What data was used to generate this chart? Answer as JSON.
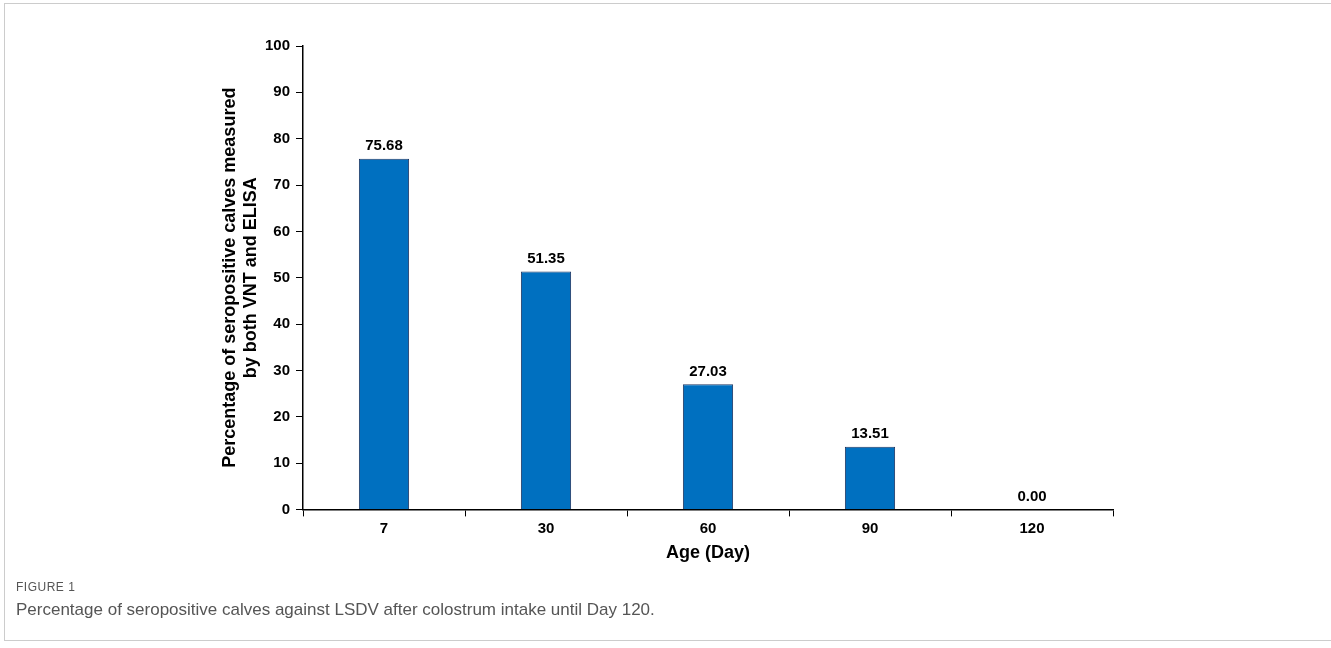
{
  "chart_data": {
    "type": "bar",
    "ylabel": "Percentage of seropositive calves measured\nby both VNT and ELISA",
    "xlabel": "Age (Day)",
    "categories": [
      "7",
      "30",
      "60",
      "90",
      "120"
    ],
    "values": [
      75.68,
      51.35,
      27.03,
      13.51,
      0.0
    ],
    "value_labels": [
      "75.68",
      "51.35",
      "27.03",
      "13.51",
      "0.00"
    ],
    "color": "#0070c0",
    "ylim": [
      0,
      100
    ],
    "yticks": [
      0,
      10,
      20,
      30,
      40,
      50,
      60,
      70,
      80,
      90,
      100
    ],
    "grid": false,
    "legend": false,
    "annotations": [
      "FIGURE 1",
      "Percentage of seropositive calves against LSDV after colostrum intake until Day 120."
    ]
  }
}
